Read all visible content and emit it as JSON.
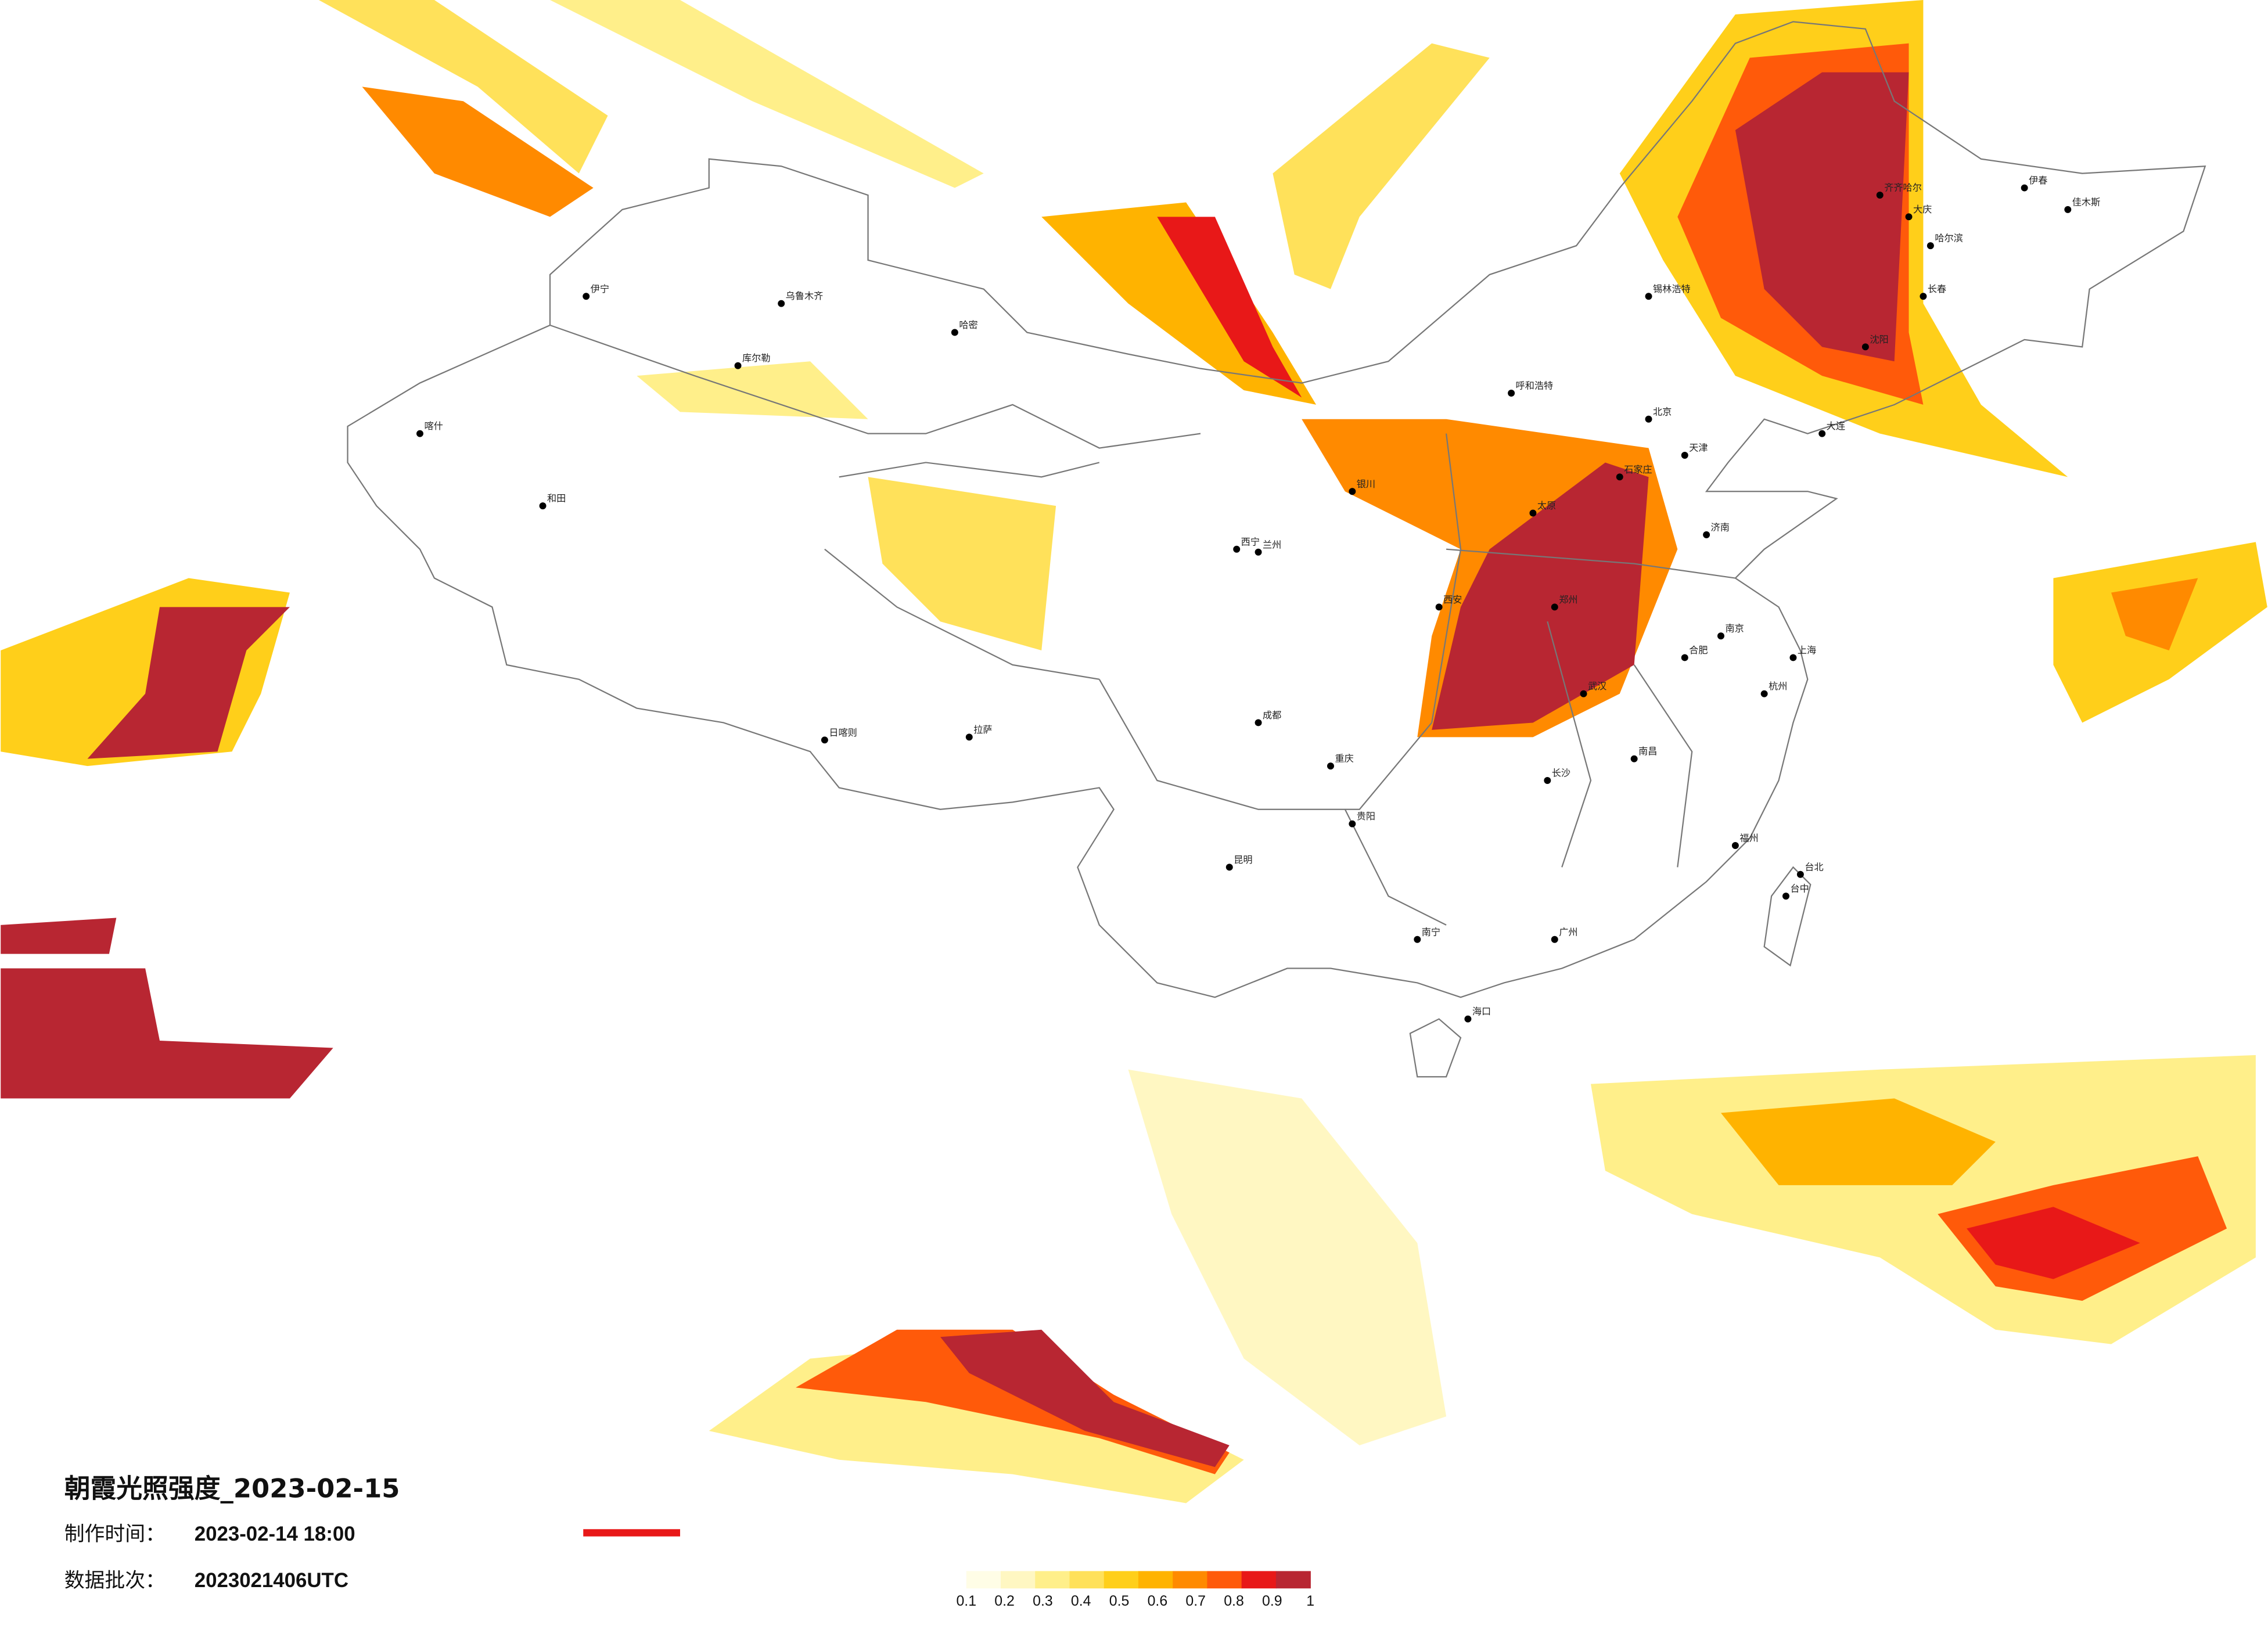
{
  "title": "朝霞光照强度_2023-02-15",
  "production_time": {
    "label": "制作时间：",
    "value": "2023-02-14 18:00"
  },
  "data_batch": {
    "label": "数据批次：",
    "value": "2023021406UTC"
  },
  "legend": {
    "colors": [
      "#fffde6",
      "#fff7c2",
      "#ffef8a",
      "#ffe15a",
      "#ffcf1a",
      "#ffb300",
      "#ff8a00",
      "#ff5a0a",
      "#e81818",
      "#b82632"
    ],
    "ticks": [
      0.1,
      0.2,
      0.3,
      0.4,
      0.5,
      0.6,
      0.7,
      0.8,
      0.9,
      1
    ]
  },
  "cities": [
    "北京",
    "天津",
    "石家庄",
    "太原",
    "呼和浩特",
    "济南",
    "郑州",
    "西安",
    "兰州",
    "银川",
    "西宁",
    "乌鲁木齐",
    "拉萨",
    "成都",
    "重庆",
    "武汉",
    "长沙",
    "南昌",
    "合肥",
    "南京",
    "上海",
    "杭州",
    "福州",
    "广州",
    "南宁",
    "海口",
    "昆明",
    "贵阳",
    "哈尔滨",
    "长春",
    "沈阳",
    "大连",
    "台北",
    "台中",
    "伊宁",
    "喀什",
    "和田",
    "库尔勒",
    "哈密",
    "日喀则",
    "齐齐哈尔",
    "大庆",
    "锡林浩特",
    "伊春",
    "佳木斯"
  ]
}
